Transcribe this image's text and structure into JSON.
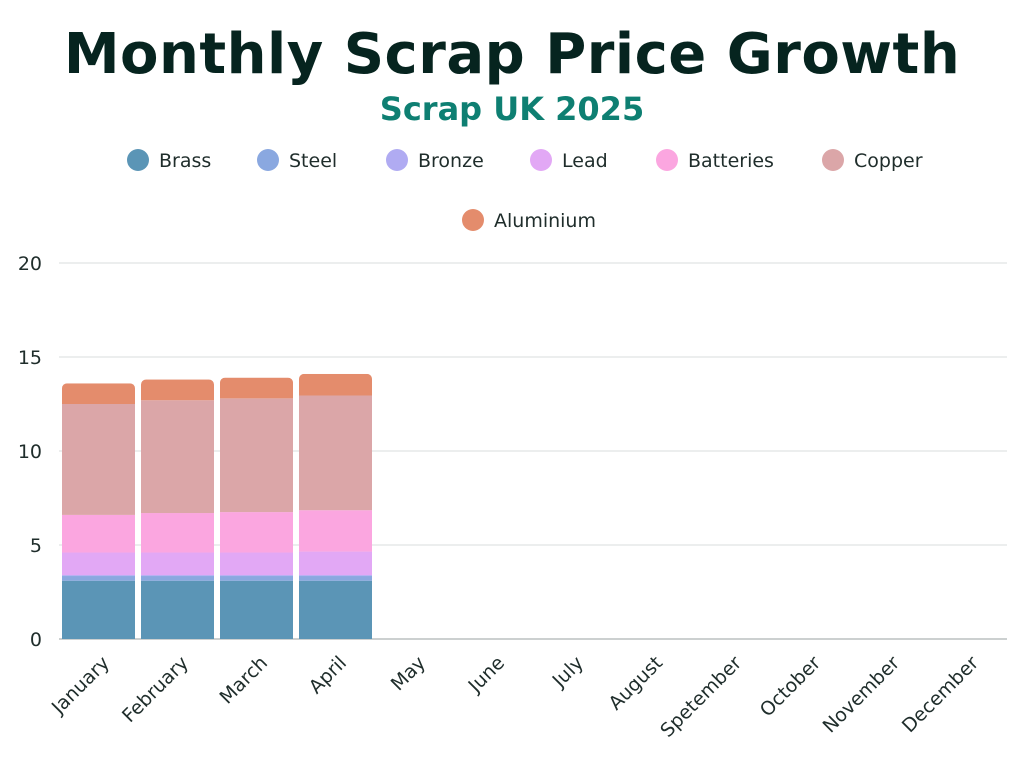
{
  "chart_data": {
    "type": "bar",
    "stacked": true,
    "title": "Monthly Scrap Price Growth",
    "subtitle": "Scrap UK 2025",
    "xlabel": "",
    "ylabel": "",
    "ylim": [
      0,
      20
    ],
    "yticks": [
      0,
      5,
      10,
      15,
      20
    ],
    "grid": true,
    "legend_position": "top",
    "categories": [
      "January",
      "February",
      "March",
      "April",
      "May",
      "June",
      "July",
      "August",
      "Spetember",
      "October",
      "November",
      "December"
    ],
    "series": [
      {
        "name": "Brass",
        "color": "#5b95b6",
        "values": [
          3.1,
          3.1,
          3.1,
          3.1,
          null,
          null,
          null,
          null,
          null,
          null,
          null,
          null
        ]
      },
      {
        "name": "Steel",
        "color": "#8aa8e0",
        "values": [
          0.25,
          0.25,
          0.25,
          0.25,
          null,
          null,
          null,
          null,
          null,
          null,
          null,
          null
        ]
      },
      {
        "name": "Bronze",
        "color": "#b0abf2",
        "values": [
          0.05,
          0.05,
          0.05,
          0.05,
          null,
          null,
          null,
          null,
          null,
          null,
          null,
          null
        ]
      },
      {
        "name": "Lead",
        "color": "#e2a8f5",
        "values": [
          1.2,
          1.2,
          1.2,
          1.25,
          null,
          null,
          null,
          null,
          null,
          null,
          null,
          null
        ]
      },
      {
        "name": "Batteries",
        "color": "#fba6e0",
        "values": [
          2.0,
          2.1,
          2.15,
          2.2,
          null,
          null,
          null,
          null,
          null,
          null,
          null,
          null
        ]
      },
      {
        "name": "Copper",
        "color": "#dba6a8",
        "values": [
          5.9,
          6.0,
          6.05,
          6.1,
          null,
          null,
          null,
          null,
          null,
          null,
          null,
          null
        ]
      },
      {
        "name": "Aluminium",
        "color": "#e48c6c",
        "values": [
          1.1,
          1.1,
          1.1,
          1.15,
          null,
          null,
          null,
          null,
          null,
          null,
          null,
          null
        ]
      }
    ]
  }
}
